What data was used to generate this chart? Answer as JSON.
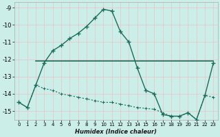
{
  "xlabel": "Humidex (Indice chaleur)",
  "bg_color": "#cceee8",
  "grid_color": "#e8c8c8",
  "line_color": "#1a6b5a",
  "xlim": [
    -0.5,
    23.5
  ],
  "ylim": [
    -15.5,
    -8.7
  ],
  "yticks": [
    -15,
    -14,
    -13,
    -12,
    -11,
    -10,
    -9
  ],
  "xticks": [
    0,
    1,
    2,
    3,
    4,
    5,
    6,
    7,
    8,
    9,
    10,
    11,
    12,
    13,
    14,
    15,
    16,
    17,
    18,
    19,
    20,
    21,
    22,
    23
  ],
  "curve1_x": [
    0,
    1,
    2,
    3,
    4,
    5,
    6,
    7,
    8,
    9,
    10,
    11,
    12,
    13,
    14,
    15,
    16,
    17,
    18,
    19,
    20,
    21,
    22,
    23
  ],
  "curve1_y": [
    -14.5,
    -14.8,
    -13.5,
    -12.2,
    -11.5,
    -11.2,
    -10.8,
    -10.5,
    -10.1,
    -9.6,
    -9.1,
    -9.2,
    -10.4,
    -11.0,
    -12.5,
    -13.8,
    -14.0,
    -15.2,
    -15.3,
    -15.3,
    -15.1,
    -15.5,
    -14.1,
    -12.2
  ],
  "curve2_x": [
    2,
    23
  ],
  "curve2_y": [
    -12.1,
    -12.1
  ],
  "curve3_x": [
    0,
    1,
    2,
    3,
    4,
    5,
    6,
    7,
    8,
    9,
    10,
    11,
    12,
    13,
    14,
    15,
    16,
    17,
    18,
    19,
    20,
    21,
    22,
    23
  ],
  "curve3_y": [
    -14.5,
    -14.8,
    -13.5,
    -13.7,
    -13.8,
    -14.0,
    -14.1,
    -14.2,
    -14.3,
    -14.4,
    -14.5,
    -14.5,
    -14.6,
    -14.7,
    -14.8,
    -14.85,
    -14.9,
    -15.1,
    -15.3,
    -15.3,
    -15.1,
    -15.5,
    -14.1,
    -14.2
  ]
}
